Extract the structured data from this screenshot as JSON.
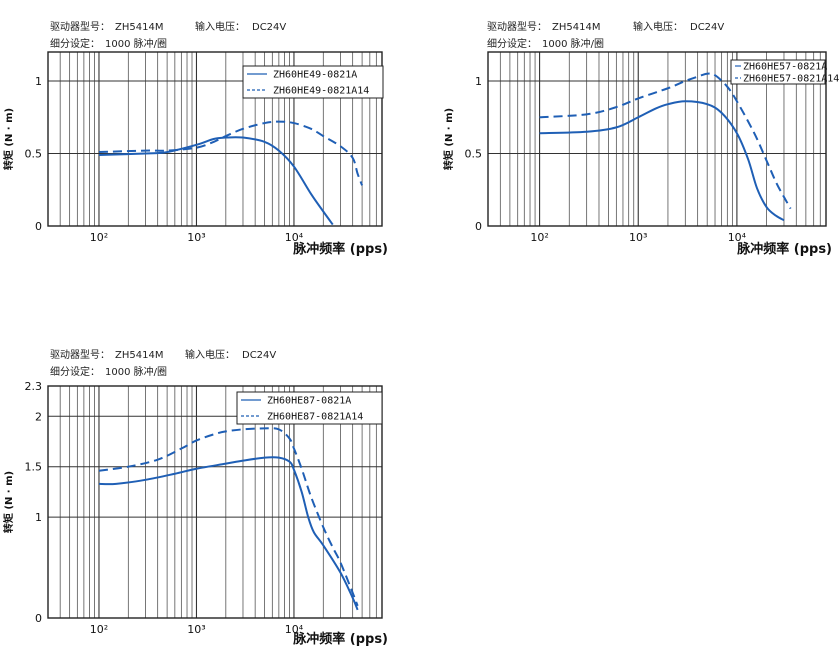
{
  "charts": [
    {
      "header": {
        "driver_label": "驱动器型号：",
        "driver_value": "ZH5414M",
        "voltage_label": "输入电压：",
        "voltage_value": "DC24V",
        "subdiv_label": "细分设定：",
        "subdiv_value": "1000 脉冲/圈"
      },
      "legend": [
        "ZH60HE49-0821A",
        "ZH60HE49-0821A14"
      ]
    },
    {
      "header": {
        "driver_label": "驱动器型号：",
        "driver_value": "ZH5414M",
        "voltage_label": "输入电压：",
        "voltage_value": "DC24V",
        "subdiv_label": "细分设定：",
        "subdiv_value": "1000 脉冲/圈"
      },
      "legend": [
        "ZH60HE57-0821A",
        "ZH60HE57-0821A14"
      ]
    },
    {
      "header": {
        "driver_label": "驱动器型号：",
        "driver_value": "ZH5414M",
        "voltage_label": "输入电压：",
        "voltage_value": "DC24V",
        "subdiv_label": "细分设定：",
        "subdiv_value": "1000 脉冲/圈"
      },
      "legend": [
        "ZH60HE87-0821A",
        "ZH60HE87-0821A14"
      ]
    }
  ],
  "chart_data": [
    {
      "type": "line",
      "xscale": "log",
      "xlim": [
        30,
        80000
      ],
      "ylim": [
        0,
        1.2
      ],
      "xticks": [
        100,
        1000,
        10000
      ],
      "xtick_labels": [
        "10²",
        "10³",
        "10⁴"
      ],
      "yticks": [
        0,
        0.5,
        1
      ],
      "ytick_labels": [
        "0",
        "0.5",
        "1"
      ],
      "xlabel": "脉冲频率 (pps)",
      "ylabel": "转矩 (N · m)",
      "grid": true,
      "legend_position": "top-right",
      "series": [
        {
          "name": "ZH60HE49-0821A",
          "style": "solid",
          "color": "#1f5fb5",
          "x": [
            100,
            300,
            500,
            1000,
            1500,
            2000,
            3000,
            5000,
            7000,
            10000,
            15000,
            20000,
            25000
          ],
          "y": [
            0.49,
            0.5,
            0.51,
            0.56,
            0.6,
            0.61,
            0.61,
            0.58,
            0.52,
            0.41,
            0.22,
            0.1,
            0.01
          ]
        },
        {
          "name": "ZH60HE49-0821A14",
          "style": "dashed",
          "color": "#1f5fb5",
          "x": [
            100,
            300,
            500,
            1000,
            1500,
            2000,
            3000,
            5000,
            7000,
            10000,
            15000,
            20000,
            30000,
            40000,
            45000,
            50000
          ],
          "y": [
            0.51,
            0.52,
            0.52,
            0.54,
            0.58,
            0.62,
            0.67,
            0.71,
            0.72,
            0.71,
            0.67,
            0.62,
            0.55,
            0.47,
            0.36,
            0.28
          ]
        }
      ]
    },
    {
      "type": "line",
      "xscale": "log",
      "xlim": [
        30,
        80000
      ],
      "ylim": [
        0,
        1.2
      ],
      "xticks": [
        100,
        1000,
        10000
      ],
      "xtick_labels": [
        "10²",
        "10³",
        "10⁴"
      ],
      "yticks": [
        0,
        0.5,
        1
      ],
      "ytick_labels": [
        "0",
        "0.5",
        "1"
      ],
      "xlabel": "脉冲频率 (pps)",
      "ylabel": "转矩 (N · m)",
      "grid": true,
      "legend_position": "top-right",
      "series": [
        {
          "name": "ZH60HE57-0821A",
          "style": "solid",
          "color": "#1f5fb5",
          "x": [
            100,
            300,
            600,
            1000,
            1500,
            2000,
            3000,
            5000,
            7000,
            10000,
            13000,
            16000,
            20000,
            25000,
            30000
          ],
          "y": [
            0.64,
            0.65,
            0.68,
            0.75,
            0.81,
            0.84,
            0.86,
            0.84,
            0.78,
            0.64,
            0.46,
            0.26,
            0.13,
            0.07,
            0.04
          ]
        },
        {
          "name": "ZH60HE57-0821A14",
          "style": "dashed",
          "color": "#1f5fb5",
          "x": [
            100,
            300,
            600,
            1000,
            2000,
            3000,
            4000,
            5000,
            6000,
            8000,
            10000,
            15000,
            20000,
            25000,
            30000,
            35000
          ],
          "y": [
            0.75,
            0.77,
            0.82,
            0.88,
            0.95,
            1.0,
            1.03,
            1.05,
            1.04,
            0.96,
            0.86,
            0.64,
            0.45,
            0.3,
            0.2,
            0.12
          ]
        }
      ]
    },
    {
      "type": "line",
      "xscale": "log",
      "xlim": [
        30,
        80000
      ],
      "ylim": [
        0,
        2.3
      ],
      "xticks": [
        100,
        1000,
        10000
      ],
      "xtick_labels": [
        "10²",
        "10³",
        "10⁴"
      ],
      "yticks": [
        0,
        1,
        1.5,
        2,
        2.3
      ],
      "ytick_labels": [
        "0",
        "1",
        "1.5",
        "2",
        "2.3"
      ],
      "xlabel": "脉冲频率 (pps)",
      "ylabel": "转矩 (N · m)",
      "grid": true,
      "legend_position": "top-right",
      "series": [
        {
          "name": "ZH60HE87-0821A",
          "style": "solid",
          "color": "#1f5fb5",
          "x": [
            100,
            150,
            300,
            600,
            1000,
            2000,
            3000,
            5000,
            7000,
            9000,
            10000,
            12000,
            14000,
            16000,
            20000,
            30000,
            40000,
            45000
          ],
          "y": [
            1.33,
            1.33,
            1.37,
            1.43,
            1.48,
            1.53,
            1.56,
            1.59,
            1.59,
            1.55,
            1.47,
            1.25,
            1.0,
            0.85,
            0.72,
            0.45,
            0.2,
            0.08
          ]
        },
        {
          "name": "ZH60HE87-0821A14",
          "style": "dashed",
          "color": "#1f5fb5",
          "x": [
            100,
            200,
            400,
            700,
            1000,
            1500,
            2000,
            3000,
            5000,
            7000,
            9000,
            10000,
            12000,
            15000,
            20000,
            25000,
            30000,
            40000,
            45000
          ],
          "y": [
            1.46,
            1.5,
            1.57,
            1.68,
            1.76,
            1.82,
            1.85,
            1.87,
            1.88,
            1.87,
            1.78,
            1.68,
            1.48,
            1.2,
            0.9,
            0.7,
            0.55,
            0.25,
            0.12
          ]
        }
      ]
    }
  ]
}
